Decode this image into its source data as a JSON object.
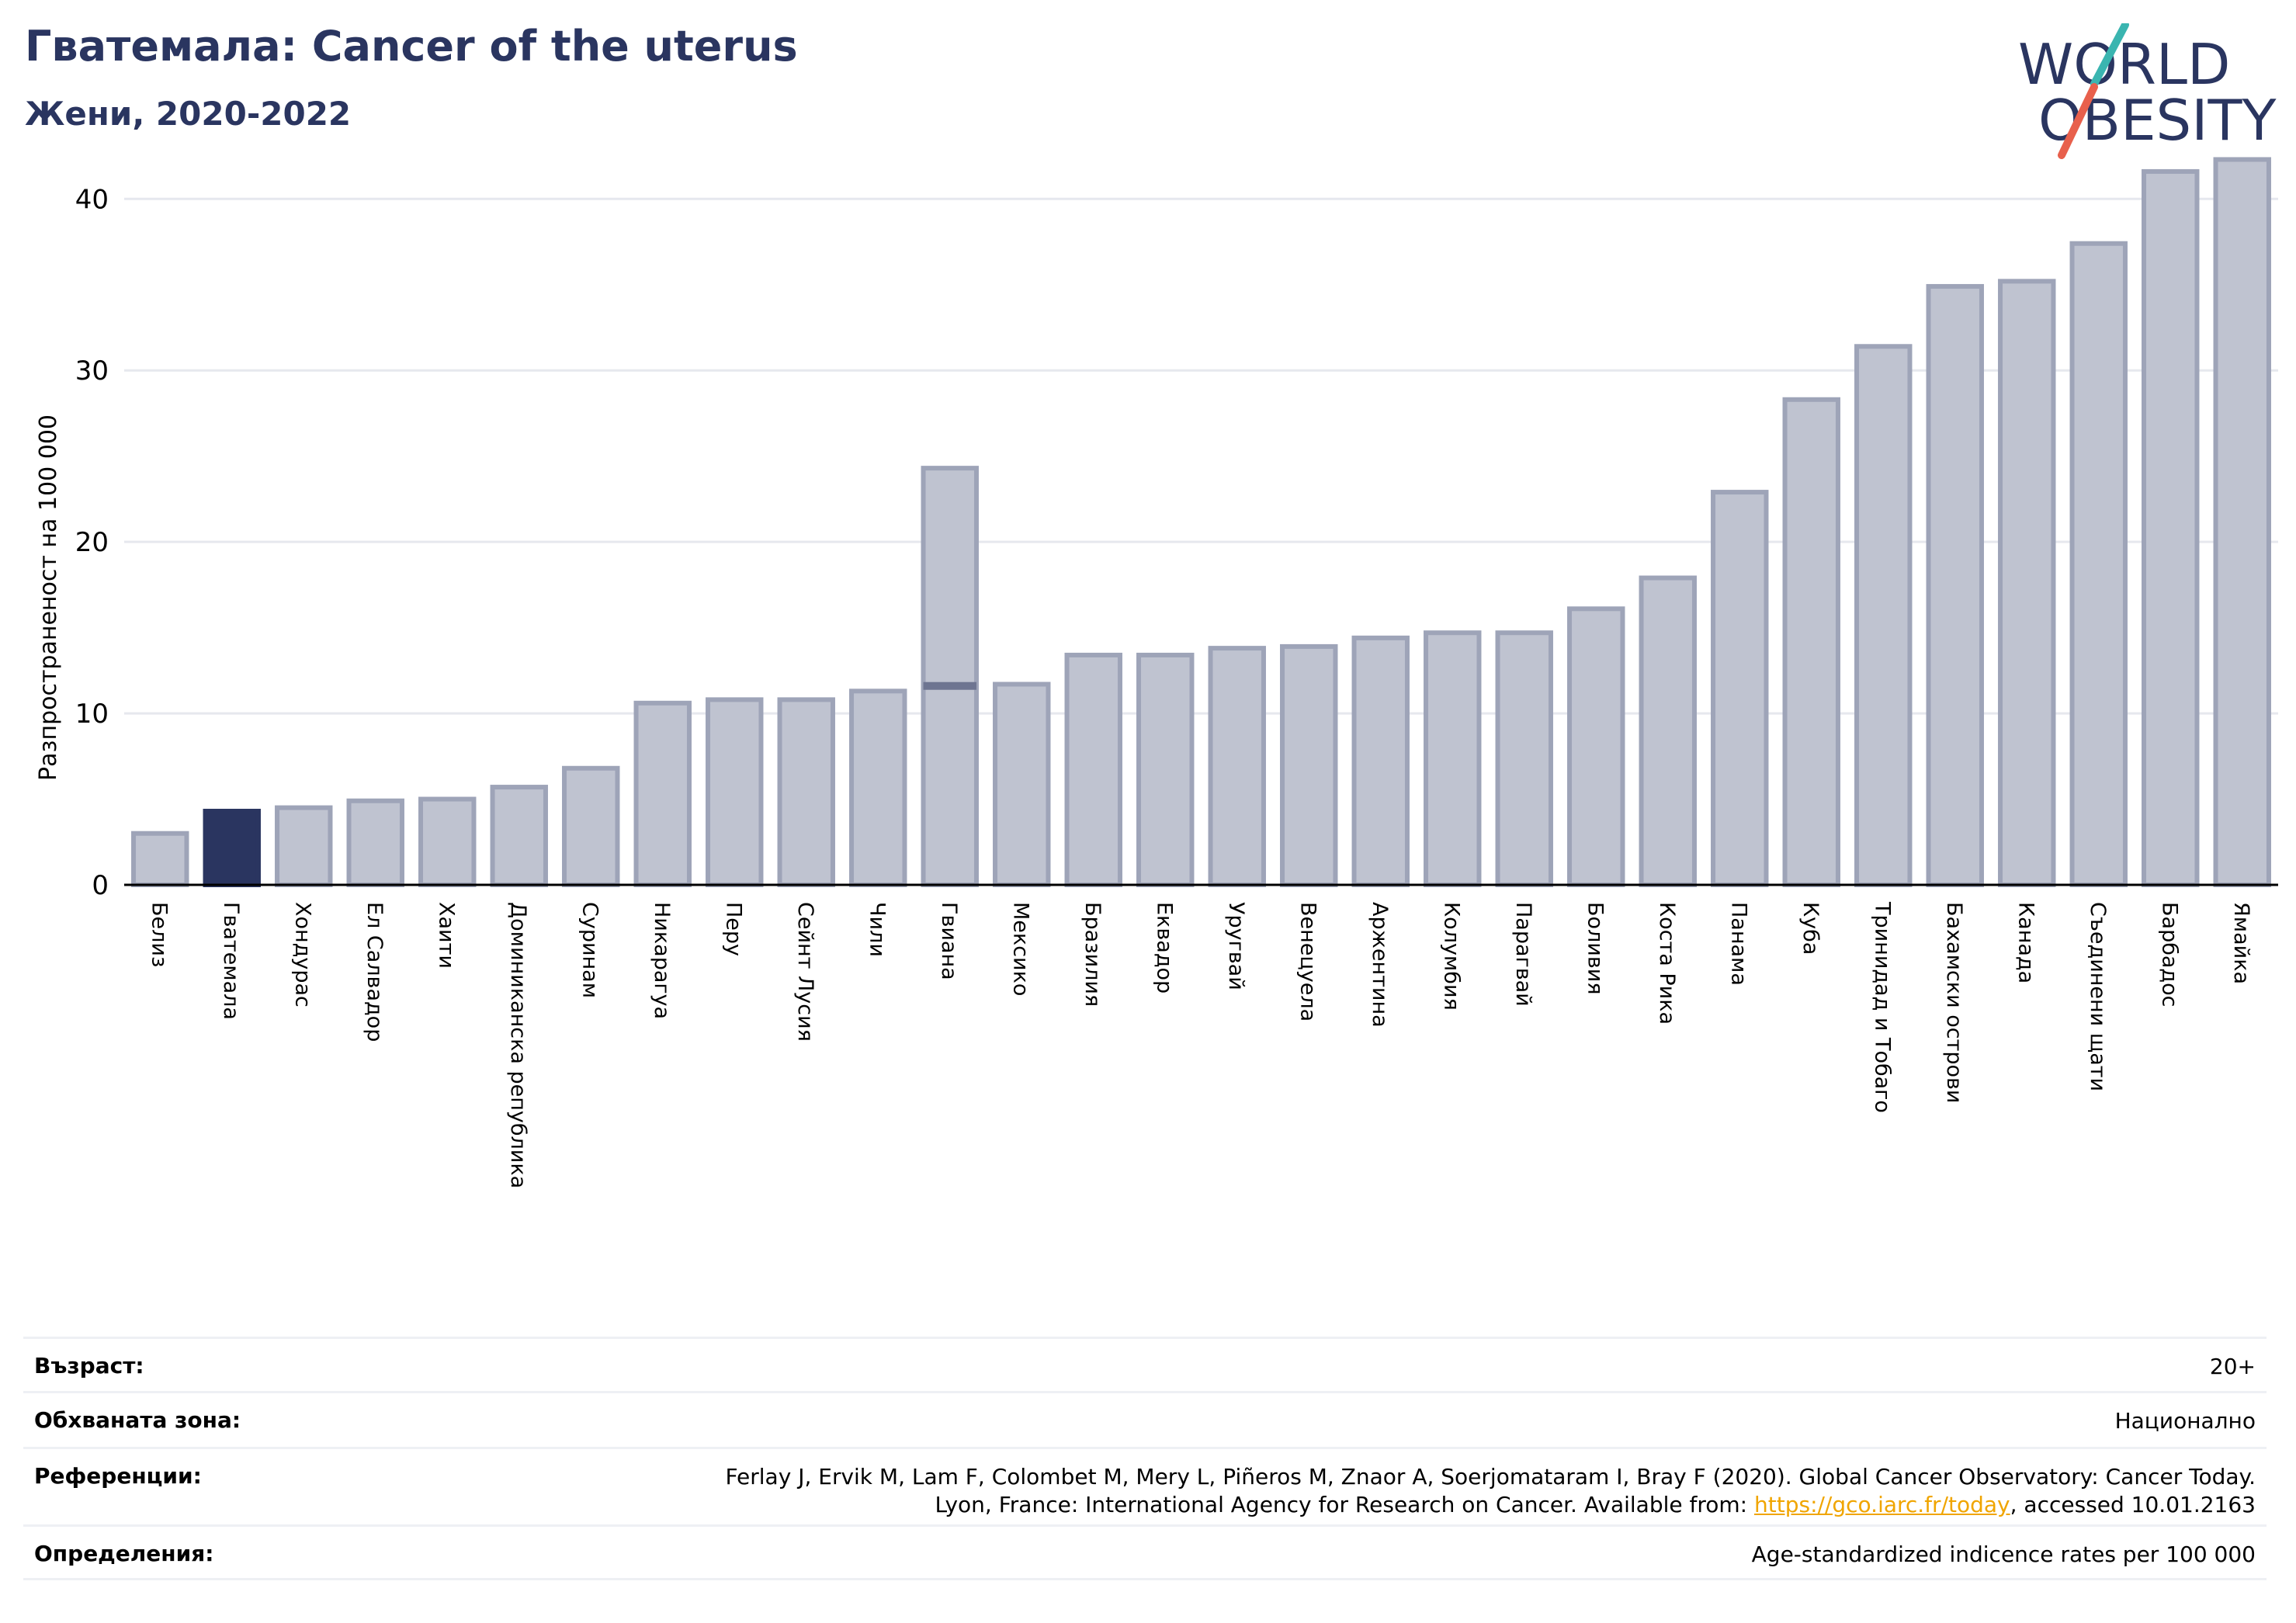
{
  "header": {
    "title": "Гватемала: Cancer of the uterus",
    "subtitle": "Жени, 2020-2022"
  },
  "logo": {
    "line1": "WORLD",
    "line2": "OBESITY",
    "text_color": "#2a3560",
    "slash_colors": [
      "#3ab5b0",
      "#e8604c"
    ]
  },
  "chart_data": {
    "type": "bar",
    "ylabel": "Разпространеност  на 100 000",
    "xlabel": "",
    "ylim": [
      0,
      43
    ],
    "yticks": [
      0,
      10,
      20,
      30,
      40
    ],
    "grid": true,
    "highlight": "Гватемала",
    "colors": {
      "bar": "#bfc3d0",
      "bar_border": "#9ea4b8",
      "highlight": "#2a3560"
    },
    "categories": [
      "Белиз",
      "Гватемала",
      "Хондурас",
      "Ел Салвадор",
      "Хаити",
      "Доминиканска република",
      "Суринам",
      "Никарагуа",
      "Перу",
      "Сейнт Лусия",
      "Чили",
      "Гвиана",
      "Мексико",
      "Бразилия",
      "Еквадор",
      "Уругвай",
      "Венецуела",
      "Аржентина",
      "Колумбия",
      "Парагвай",
      "Боливия",
      "Коста Рика",
      "Панама",
      "Куба",
      "Тринидад и Тобаго",
      "Бахамски острови",
      "Канада",
      "Съединени щати",
      "Барбадос",
      "Ямайка"
    ],
    "values": [
      3.0,
      4.3,
      4.5,
      4.9,
      5.0,
      5.7,
      6.8,
      10.6,
      10.8,
      10.8,
      11.3,
      24.3,
      11.7,
      13.4,
      13.4,
      13.8,
      13.9,
      14.4,
      14.7,
      14.7,
      16.1,
      17.9,
      22.9,
      28.3,
      31.4,
      34.9,
      35.2,
      37.4,
      41.6,
      42.3
    ],
    "secondary_marks": [
      {
        "category": "Гвиана",
        "value": 11.6
      }
    ]
  },
  "info": {
    "rows": [
      {
        "label": "Възраст:",
        "value": "20+"
      },
      {
        "label": "Обхваната зона:",
        "value": "Национално"
      },
      {
        "label": "Референции:",
        "value_line1": "Ferlay J, Ervik M, Lam F, Colombet M, Mery L, Piñeros M, Znaor A, Soerjomataram I, Bray F (2020). Global Cancer Observatory: Cancer Today.",
        "value_line2_pre": "Lyon, France: International Agency for Research on Cancer. Available from: ",
        "value_link": "https://gco.iarc.fr/today",
        "value_line2_post": ", accessed 10.01.2163"
      },
      {
        "label": "Определения:",
        "value": "Age-standardized indicence rates per 100 000"
      }
    ]
  }
}
